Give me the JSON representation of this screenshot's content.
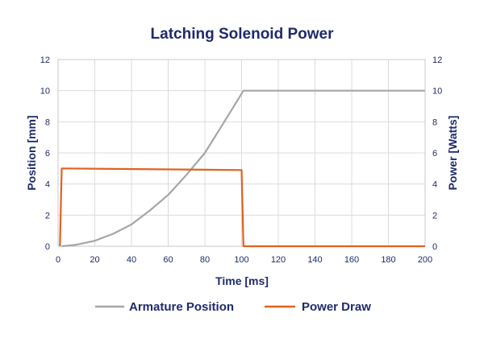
{
  "chart_data": {
    "type": "line",
    "title": "Latching Solenoid Power",
    "xlabel": "Time [ms]",
    "ylabel_left": "Position [mm]",
    "ylabel_right": "Power [Watts]",
    "xlim": [
      0,
      200
    ],
    "ylim_left": [
      0,
      12
    ],
    "ylim_right": [
      0,
      12
    ],
    "x_ticks": [
      0,
      20,
      40,
      60,
      80,
      100,
      120,
      140,
      160,
      180,
      200
    ],
    "y_ticks_left": [
      0,
      2,
      4,
      6,
      8,
      10,
      12
    ],
    "y_ticks_right": [
      0,
      2,
      4,
      6,
      8,
      10,
      12
    ],
    "grid": true,
    "legend_position": "bottom",
    "series": [
      {
        "name": "Armature Position",
        "axis": "left",
        "color": "#a6a6a6",
        "x": [
          2,
          10,
          20,
          30,
          40,
          50,
          60,
          70,
          80,
          90,
          101,
          200
        ],
        "y": [
          0,
          0.1,
          0.35,
          0.8,
          1.4,
          2.3,
          3.3,
          4.6,
          6.0,
          7.9,
          10.0,
          10.0
        ]
      },
      {
        "name": "Power Draw",
        "axis": "right",
        "color": "#e0621f",
        "x": [
          1,
          2,
          100,
          101,
          200
        ],
        "y": [
          0,
          5.0,
          4.9,
          0,
          0
        ]
      }
    ]
  }
}
